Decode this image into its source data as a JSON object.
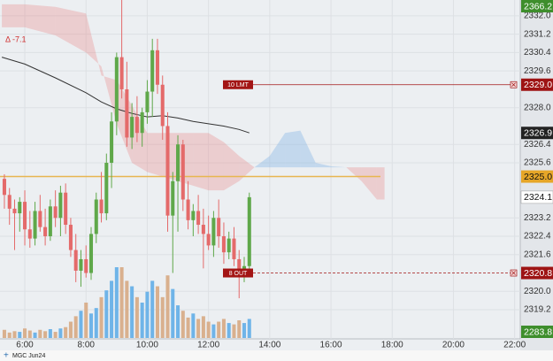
{
  "chart_data": {
    "type": "candlestick",
    "symbol": "MGC Jun24",
    "change": "Δ -7.1",
    "xlim": [
      311.4,
      1331
    ],
    "ylim": [
      2317.93,
      2332.69
    ],
    "xticks": [
      {
        "value": 360,
        "label": "6:00"
      },
      {
        "value": 480,
        "label": "8:00"
      },
      {
        "value": 600,
        "label": "10:00"
      },
      {
        "value": 720,
        "label": "12:00"
      },
      {
        "value": 840,
        "label": "14:00"
      },
      {
        "value": 960,
        "label": "16:00"
      },
      {
        "value": 1080,
        "label": "18:00"
      },
      {
        "value": 1200,
        "label": "20:00"
      },
      {
        "value": 1320,
        "label": "22:00"
      }
    ],
    "yticks": [
      {
        "value": 2332.0,
        "label": "2332.0"
      },
      {
        "value": 2331.2,
        "label": "2331.2"
      },
      {
        "value": 2330.4,
        "label": "2330.4"
      },
      {
        "value": 2329.6,
        "label": "2329.6"
      },
      {
        "value": 2328.0,
        "label": "2328.0"
      },
      {
        "value": 2326.4,
        "label": "2326.4"
      },
      {
        "value": 2325.6,
        "label": "2325.6"
      },
      {
        "value": 2323.2,
        "label": "2323.2"
      },
      {
        "value": 2322.4,
        "label": "2322.4"
      },
      {
        "value": 2321.6,
        "label": "2321.6"
      },
      {
        "value": 2320.0,
        "label": "2320.0"
      },
      {
        "value": 2319.2,
        "label": "2319.2"
      }
    ],
    "grid": true,
    "up_color": "#5fa84a",
    "down_color": "#e46a6a",
    "volume_up_color": "#6fb4e8",
    "volume_down_color": "#d9b08e",
    "x": [
      320,
      330,
      340,
      350,
      360,
      370,
      380,
      390,
      400,
      410,
      420,
      430,
      440,
      450,
      460,
      470,
      480,
      490,
      500,
      510,
      520,
      530,
      540,
      550,
      560,
      570,
      580,
      590,
      600,
      610,
      620,
      630,
      640,
      650,
      660,
      670,
      680,
      690,
      700,
      710,
      720,
      730,
      740,
      750,
      760,
      770,
      780,
      790,
      800
    ],
    "open": [
      2324.9,
      2324.2,
      2323.6,
      2323.4,
      2323.9,
      2322.7,
      2322.3,
      2323.5,
      2322.8,
      2322.4,
      2323.7,
      2323.2,
      2324.3,
      2322.9,
      2321.8,
      2320.9,
      2321.4,
      2320.8,
      2322.5,
      2324.0,
      2323.4,
      2325.6,
      2327.4,
      2330.2,
      2328.8,
      2326.7,
      2327.6,
      2326.9,
      2327.8,
      2328.7,
      2330.5,
      2329.0,
      2327.2,
      2323.3,
      2324.8,
      2326.4,
      2324.0,
      2323.1,
      2323.5,
      2322.9,
      2322.5,
      2322.0,
      2323.2,
      2322.4,
      2321.7,
      2322.3,
      2321.4,
      2320.9,
      2321.1
    ],
    "high": [
      2325.1,
      2324.5,
      2324.0,
      2324.1,
      2324.4,
      2323.5,
      2323.9,
      2324.2,
      2323.6,
      2324.0,
      2324.4,
      2324.6,
      2324.7,
      2323.2,
      2322.5,
      2321.8,
      2322.0,
      2322.8,
      2324.3,
      2325.2,
      2326.0,
      2327.8,
      2330.4,
      2332.7,
      2330.0,
      2328.2,
      2328.5,
      2328.0,
      2329.2,
      2331.0,
      2331.0,
      2329.4,
      2327.8,
      2325.2,
      2326.8,
      2326.6,
      2324.8,
      2323.8,
      2324.2,
      2323.6,
      2323.3,
      2323.5,
      2324.0,
      2323.0,
      2322.6,
      2322.8,
      2321.8,
      2321.5,
      2324.3
    ],
    "low": [
      2323.6,
      2322.9,
      2321.8,
      2322.6,
      2322.0,
      2321.9,
      2322.0,
      2322.6,
      2322.0,
      2322.2,
      2322.8,
      2322.4,
      2322.5,
      2321.5,
      2320.4,
      2320.2,
      2320.6,
      2320.5,
      2322.1,
      2323.0,
      2323.1,
      2324.5,
      2326.8,
      2328.4,
      2326.3,
      2326.2,
      2326.5,
      2326.3,
      2327.3,
      2327.6,
      2328.6,
      2326.6,
      2322.6,
      2320.8,
      2322.6,
      2323.5,
      2322.7,
      2322.4,
      2322.5,
      2321.0,
      2321.8,
      2321.5,
      2321.9,
      2321.2,
      2321.4,
      2321.1,
      2319.7,
      2320.4,
      2320.9
    ],
    "close": [
      2324.2,
      2323.6,
      2323.4,
      2323.9,
      2322.7,
      2322.3,
      2323.5,
      2322.8,
      2322.4,
      2323.7,
      2323.2,
      2324.3,
      2322.9,
      2321.8,
      2320.9,
      2321.4,
      2320.8,
      2322.5,
      2324.0,
      2323.4,
      2325.6,
      2327.4,
      2330.2,
      2328.8,
      2326.7,
      2327.6,
      2326.9,
      2327.8,
      2328.7,
      2330.5,
      2329.0,
      2327.2,
      2323.3,
      2324.8,
      2326.4,
      2324.0,
      2323.1,
      2323.5,
      2322.9,
      2322.5,
      2322.0,
      2323.2,
      2322.4,
      2321.7,
      2322.3,
      2321.4,
      2320.9,
      2321.1,
      2324.1
    ],
    "volume": [
      60,
      40,
      50,
      45,
      70,
      55,
      40,
      60,
      50,
      65,
      45,
      70,
      80,
      120,
      160,
      200,
      260,
      180,
      220,
      300,
      350,
      420,
      520,
      520,
      420,
      380,
      300,
      260,
      340,
      420,
      380,
      300,
      460,
      360,
      240,
      200,
      150,
      180,
      140,
      160,
      120,
      100,
      120,
      140,
      110,
      100,
      130,
      110,
      140
    ],
    "moving_average": {
      "color": "#333333",
      "x": [
        315,
        360,
        420,
        480,
        510,
        540,
        570,
        600,
        630,
        660,
        690,
        720,
        750,
        780,
        800
      ],
      "values": [
        2330.2,
        2329.9,
        2329.3,
        2328.65,
        2328.25,
        2327.95,
        2327.75,
        2327.6,
        2327.65,
        2327.55,
        2327.4,
        2327.3,
        2327.2,
        2327.05,
        2326.9
      ]
    },
    "cloud": {
      "x": [
        315,
        360,
        420,
        480,
        510,
        540,
        570,
        600,
        630,
        660,
        690,
        720,
        750,
        780,
        810,
        840,
        870,
        900,
        930,
        960,
        990,
        1020,
        1050,
        1065
      ],
      "span_a": [
        2331.5,
        2331.5,
        2331.15,
        2330.4,
        2329.8,
        2327.3,
        2325.6,
        2325.2,
        2325.0,
        2324.8,
        2324.6,
        2324.4,
        2324.4,
        2324.8,
        2325.4,
        2325.9,
        2326.9,
        2327.0,
        2325.6,
        2325.45,
        2325.4,
        2324.8,
        2324.0,
        2324.0
      ],
      "span_b": [
        2332.5,
        2332.5,
        2332.39,
        2332.1,
        2329.4,
        2329.2,
        2328.1,
        2326.9,
        2326.9,
        2326.9,
        2326.9,
        2326.9,
        2326.5,
        2325.9,
        2325.4,
        2325.4,
        2325.4,
        2325.4,
        2325.4,
        2325.4,
        2325.4,
        2325.4,
        2325.4,
        2325.4
      ],
      "bear_color": "rgba(232,120,120,0.28)",
      "bull_color": "rgba(120,175,230,0.35)"
    },
    "reference_line": {
      "value": 2325.0,
      "color": "#e8b650"
    },
    "orders": [
      {
        "label": "10 LMT",
        "price": 2329.0,
        "color": "#a31515"
      },
      {
        "label": "8 OUT",
        "price": 2320.8,
        "color": "#a31515"
      }
    ],
    "price_tags": [
      {
        "value": 2366.2,
        "label": "2366.2",
        "color": "#3e8e2c"
      },
      {
        "value": 2329.0,
        "label": "2329.0",
        "color": "#9e1414"
      },
      {
        "value": 2326.9,
        "label": "2326.9",
        "color": "#222222"
      },
      {
        "value": 2325.0,
        "label": "2325.0",
        "color": "#e6a628"
      },
      {
        "value": 2324.1,
        "label": "2324.1",
        "color": "#ffffff"
      },
      {
        "value": 2320.8,
        "label": "2320.8",
        "color": "#9e1414"
      },
      {
        "value": 2283.8,
        "label": "2283.8",
        "color": "#3e8e2c"
      }
    ]
  }
}
